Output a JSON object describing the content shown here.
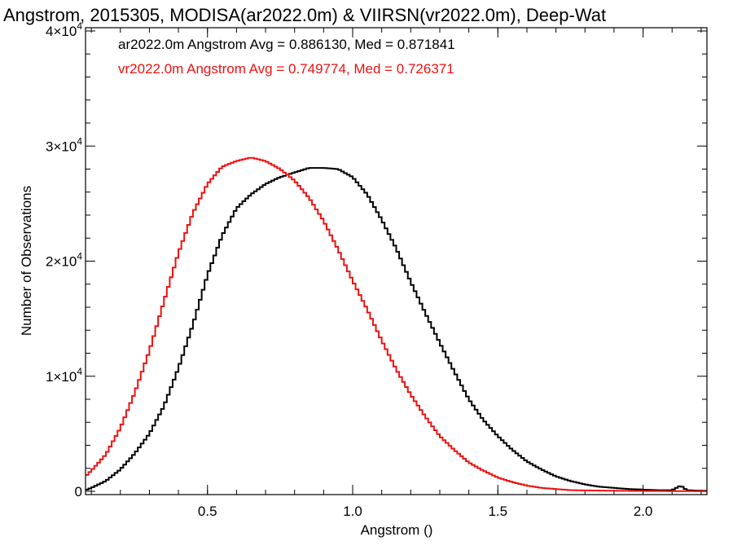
{
  "chart_data": {
    "type": "line",
    "title": "Angstrom, 2015305, MODISA(ar2022.0m) & VIIRSN(vr2022.0m), Deep-Wat",
    "xlabel": "Angstrom ()",
    "ylabel": "Number of Observations",
    "xlim": [
      0.08,
      2.22
    ],
    "ylim": [
      0,
      40000
    ],
    "x_ticks": [
      {
        "value": 0.5,
        "label": "0.5"
      },
      {
        "value": 1.0,
        "label": "1.0"
      },
      {
        "value": 1.5,
        "label": "1.5"
      },
      {
        "value": 2.0,
        "label": "2.0"
      }
    ],
    "y_ticks": [
      {
        "value": 0,
        "mant": "0",
        "exp": ""
      },
      {
        "value": 10000,
        "mant": "1×10",
        "exp": "4"
      },
      {
        "value": 20000,
        "mant": "2×10",
        "exp": "4"
      },
      {
        "value": 30000,
        "mant": "3×10",
        "exp": "4"
      },
      {
        "value": 40000,
        "mant": "4×10",
        "exp": "4"
      }
    ],
    "annotations": [
      {
        "text": "ar2022.0m Angstrom Avg = 0.886130, Med = 0.871841",
        "color": "#000000"
      },
      {
        "text": "vr2022.0m Angstrom Avg = 0.749774, Med = 0.726371",
        "color": "#ee1111"
      }
    ],
    "series": [
      {
        "color": "#000000",
        "points": [
          [
            0.08,
            100
          ],
          [
            0.1,
            300
          ],
          [
            0.15,
            900
          ],
          [
            0.2,
            1900
          ],
          [
            0.25,
            3300
          ],
          [
            0.3,
            5000
          ],
          [
            0.35,
            7400
          ],
          [
            0.4,
            10700
          ],
          [
            0.45,
            14500
          ],
          [
            0.5,
            18800
          ],
          [
            0.55,
            22200
          ],
          [
            0.6,
            24600
          ],
          [
            0.65,
            25800
          ],
          [
            0.7,
            26700
          ],
          [
            0.75,
            27300
          ],
          [
            0.8,
            27700
          ],
          [
            0.85,
            28100
          ],
          [
            0.9,
            28100
          ],
          [
            0.95,
            28000
          ],
          [
            1.0,
            27300
          ],
          [
            1.05,
            25800
          ],
          [
            1.1,
            23600
          ],
          [
            1.15,
            21100
          ],
          [
            1.2,
            18200
          ],
          [
            1.25,
            15500
          ],
          [
            1.3,
            12900
          ],
          [
            1.35,
            10400
          ],
          [
            1.4,
            8000
          ],
          [
            1.45,
            6200
          ],
          [
            1.5,
            4800
          ],
          [
            1.55,
            3600
          ],
          [
            1.6,
            2600
          ],
          [
            1.65,
            1900
          ],
          [
            1.7,
            1300
          ],
          [
            1.75,
            900
          ],
          [
            1.8,
            600
          ],
          [
            1.85,
            400
          ],
          [
            1.9,
            300
          ],
          [
            1.95,
            200
          ],
          [
            2.0,
            150
          ],
          [
            2.05,
            100
          ],
          [
            2.1,
            100
          ],
          [
            2.13,
            500
          ],
          [
            2.15,
            100
          ],
          [
            2.2,
            50
          ],
          [
            2.22,
            50
          ]
        ]
      },
      {
        "color": "#ee1111",
        "points": [
          [
            0.08,
            1300
          ],
          [
            0.1,
            1800
          ],
          [
            0.15,
            3200
          ],
          [
            0.2,
            5500
          ],
          [
            0.25,
            8600
          ],
          [
            0.3,
            12200
          ],
          [
            0.35,
            16500
          ],
          [
            0.4,
            20700
          ],
          [
            0.45,
            24200
          ],
          [
            0.5,
            26700
          ],
          [
            0.55,
            28200
          ],
          [
            0.6,
            28700
          ],
          [
            0.65,
            29000
          ],
          [
            0.7,
            28700
          ],
          [
            0.75,
            28000
          ],
          [
            0.8,
            27000
          ],
          [
            0.85,
            25500
          ],
          [
            0.9,
            23500
          ],
          [
            0.95,
            21000
          ],
          [
            1.0,
            18300
          ],
          [
            1.05,
            15800
          ],
          [
            1.1,
            13100
          ],
          [
            1.15,
            10600
          ],
          [
            1.2,
            8400
          ],
          [
            1.25,
            6500
          ],
          [
            1.3,
            4800
          ],
          [
            1.35,
            3600
          ],
          [
            1.4,
            2500
          ],
          [
            1.45,
            1800
          ],
          [
            1.5,
            1200
          ],
          [
            1.55,
            800
          ],
          [
            1.6,
            500
          ],
          [
            1.65,
            300
          ],
          [
            1.7,
            200
          ],
          [
            1.75,
            100
          ],
          [
            1.8,
            80
          ],
          [
            1.9,
            50
          ],
          [
            2.0,
            30
          ],
          [
            2.1,
            20
          ],
          [
            2.22,
            10
          ]
        ]
      }
    ]
  }
}
